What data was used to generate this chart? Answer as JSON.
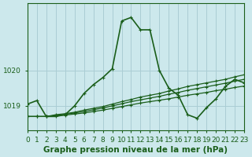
{
  "title": "Graphe pression niveau de la mer (hPa)",
  "bg_color": "#cce8ec",
  "grid_color": "#aacdd4",
  "line_color": "#1a5e1a",
  "x_min": 0,
  "x_max": 23,
  "y_min": 1018.3,
  "y_max": 1021.9,
  "yticks": [
    1019,
    1020
  ],
  "xticks": [
    0,
    1,
    2,
    3,
    4,
    5,
    6,
    7,
    8,
    9,
    10,
    11,
    12,
    13,
    14,
    15,
    16,
    17,
    18,
    19,
    20,
    21,
    22,
    23
  ],
  "series": [
    {
      "x": [
        0,
        1,
        2,
        3,
        4,
        5,
        6,
        7,
        8,
        9,
        10,
        11,
        12,
        13,
        14,
        15,
        16,
        17,
        18,
        19,
        20,
        21,
        22,
        23
      ],
      "y": [
        1019.05,
        1019.15,
        1018.7,
        1018.7,
        1018.75,
        1019.0,
        1019.35,
        1019.6,
        1019.8,
        1020.05,
        1021.4,
        1021.5,
        1021.15,
        1021.15,
        1020.0,
        1019.5,
        1019.3,
        1018.75,
        1018.65,
        1018.95,
        1019.2,
        1019.55,
        1019.75,
        1019.65
      ],
      "lw": 1.2,
      "marker": true
    },
    {
      "x": [
        0,
        1,
        2,
        3,
        4,
        5,
        6,
        7,
        8,
        9,
        10,
        11,
        12,
        13,
        14,
        15,
        16,
        17,
        18,
        19,
        20,
        21,
        22,
        23
      ],
      "y": [
        1018.7,
        1018.7,
        1018.7,
        1018.75,
        1018.78,
        1018.82,
        1018.88,
        1018.93,
        1018.98,
        1019.05,
        1019.12,
        1019.18,
        1019.25,
        1019.3,
        1019.35,
        1019.42,
        1019.48,
        1019.55,
        1019.6,
        1019.65,
        1019.7,
        1019.75,
        1019.82,
        1019.88
      ],
      "lw": 0.9,
      "marker": true
    },
    {
      "x": [
        0,
        1,
        2,
        3,
        4,
        5,
        6,
        7,
        8,
        9,
        10,
        11,
        12,
        13,
        14,
        15,
        16,
        17,
        18,
        19,
        20,
        21,
        22,
        23
      ],
      "y": [
        1018.7,
        1018.7,
        1018.7,
        1018.73,
        1018.76,
        1018.8,
        1018.84,
        1018.89,
        1018.94,
        1019.0,
        1019.06,
        1019.12,
        1019.17,
        1019.22,
        1019.27,
        1019.33,
        1019.38,
        1019.44,
        1019.49,
        1019.54,
        1019.59,
        1019.64,
        1019.7,
        1019.75
      ],
      "lw": 0.9,
      "marker": true
    },
    {
      "x": [
        0,
        1,
        2,
        3,
        4,
        5,
        6,
        7,
        8,
        9,
        10,
        11,
        12,
        13,
        14,
        15,
        16,
        17,
        18,
        19,
        20,
        21,
        22,
        23
      ],
      "y": [
        1018.7,
        1018.7,
        1018.7,
        1018.72,
        1018.74,
        1018.77,
        1018.8,
        1018.84,
        1018.88,
        1018.93,
        1018.98,
        1019.03,
        1019.08,
        1019.12,
        1019.16,
        1019.2,
        1019.25,
        1019.3,
        1019.34,
        1019.38,
        1019.43,
        1019.47,
        1019.52,
        1019.56
      ],
      "lw": 0.9,
      "marker": true
    }
  ],
  "marker_symbol": "+",
  "marker_size": 3.5,
  "font_color": "#1a5e1a",
  "tick_font_size": 6.5,
  "title_font_size": 7.5
}
